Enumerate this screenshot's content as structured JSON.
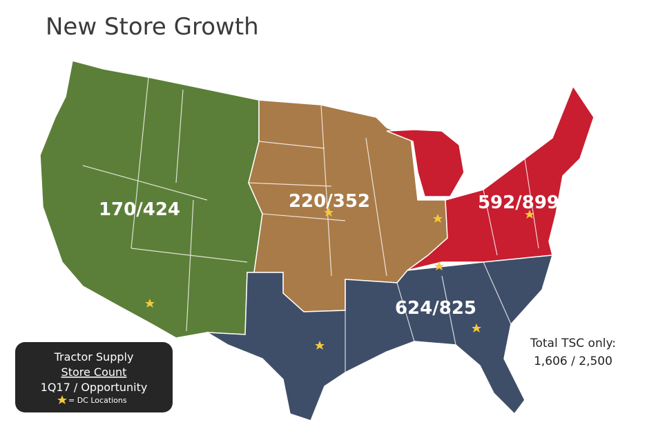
{
  "title": "New Store Growth",
  "regions": [
    {
      "label": "170/424"
    },
    {
      "label": "220/352"
    },
    {
      "label": "592/899"
    },
    {
      "label": "624/825"
    }
  ],
  "legend": {
    "line1": "Tractor Supply",
    "line2": "Store Count",
    "line3": "1Q17 / Opportunity",
    "star_note": "= DC Locations"
  },
  "total": {
    "label": "Total TSC only:",
    "value": "1,606 / 2,500"
  }
}
